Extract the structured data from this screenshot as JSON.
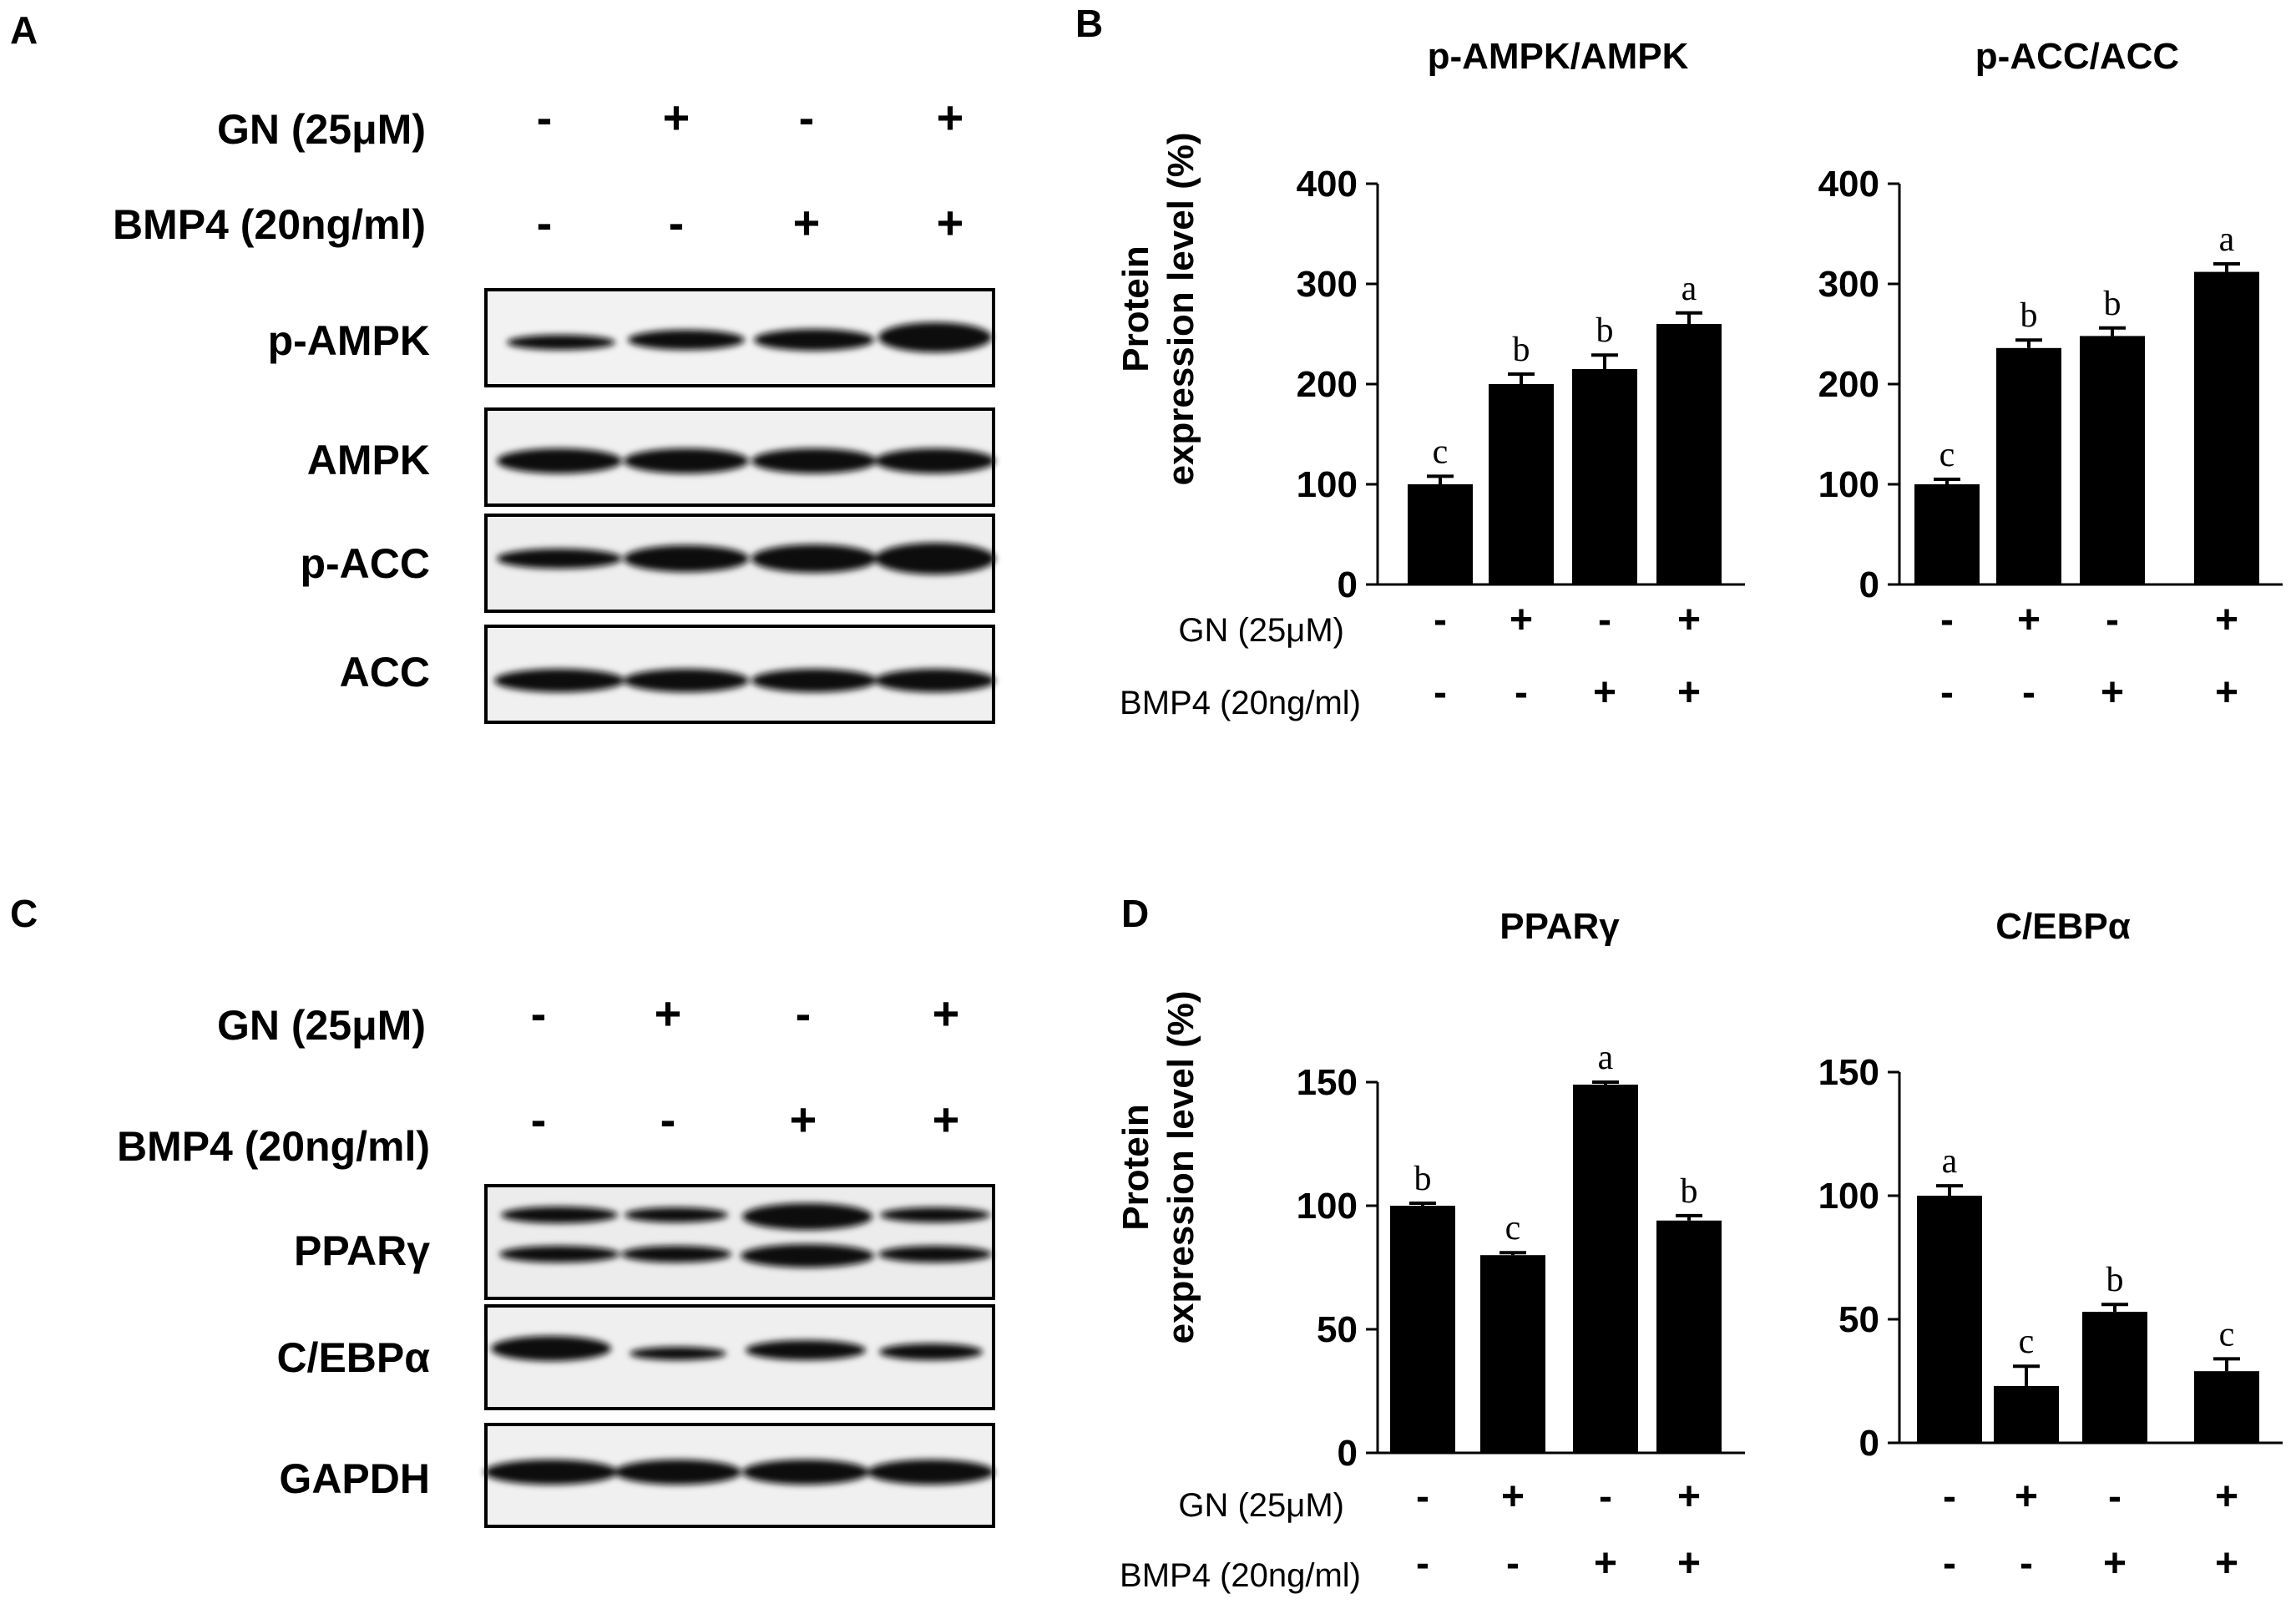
{
  "panels": {
    "A": "A",
    "B": "B",
    "C": "C",
    "D": "D"
  },
  "western_blots": [
    {
      "conditions": [
        {
          "label": "GN (25μM)",
          "signs": [
            "-",
            "+",
            "-",
            "+"
          ]
        },
        {
          "label": "BMP4 (20ng/ml)",
          "signs": [
            "-",
            "-",
            "+",
            "+"
          ]
        }
      ],
      "bands": [
        "p-AMPK",
        "AMPK",
        "p-ACC",
        "ACC"
      ]
    },
    {
      "conditions": [
        {
          "label": "GN (25μM)",
          "signs": [
            "-",
            "+",
            "-",
            "+"
          ]
        },
        {
          "label": "BMP4 (20ng/ml)",
          "signs": [
            "-",
            "-",
            "+",
            "+"
          ]
        }
      ],
      "bands": [
        "PPARγ",
        "C/EBPα",
        "GAPDH"
      ]
    }
  ],
  "bar_conditions": [
    {
      "label": "GN (25μM)",
      "signs": [
        "-",
        "+",
        "-",
        "+"
      ]
    },
    {
      "label": "BMP4 (20ng/ml)",
      "signs": [
        "-",
        "-",
        "+",
        "+"
      ]
    }
  ],
  "ylabel_line1": "Protein",
  "ylabel_line2": "expression level (%)",
  "colors": {
    "bar": "#000000",
    "axis": "#000000",
    "background": "#ffffff"
  },
  "chart_data": [
    {
      "type": "bar",
      "title": "p-AMPK/AMPK",
      "ylabel": "Protein expression level (%)",
      "ylim": [
        0,
        400
      ],
      "yticks": [
        0,
        100,
        200,
        300,
        400
      ],
      "values": [
        100,
        200,
        215,
        260
      ],
      "errors": [
        8,
        10,
        14,
        11
      ],
      "significance": [
        "c",
        "b",
        "b",
        "a"
      ]
    },
    {
      "type": "bar",
      "title": "p-ACC/ACC",
      "ylabel": "",
      "ylim": [
        0,
        400
      ],
      "yticks": [
        0,
        100,
        200,
        300,
        400
      ],
      "values": [
        100,
        236,
        248,
        312
      ],
      "errors": [
        5,
        8,
        8,
        8
      ],
      "significance": [
        "c",
        "b",
        "b",
        "a"
      ]
    },
    {
      "type": "bar",
      "title": "PPARγ",
      "ylabel": "Protein expression level (%)",
      "ylim": [
        0,
        150
      ],
      "yticks": [
        0,
        50,
        100,
        150
      ],
      "values": [
        100,
        80,
        149,
        94
      ],
      "errors": [
        1,
        1,
        1,
        2
      ],
      "significance": [
        "b",
        "c",
        "a",
        "b"
      ]
    },
    {
      "type": "bar",
      "title": "C/EBPα",
      "ylabel": "",
      "ylim": [
        0,
        150
      ],
      "yticks": [
        0,
        50,
        100,
        150
      ],
      "values": [
        100,
        23,
        53,
        29
      ],
      "errors": [
        4,
        8,
        3,
        5
      ],
      "significance": [
        "a",
        "c",
        "b",
        "c"
      ]
    }
  ]
}
